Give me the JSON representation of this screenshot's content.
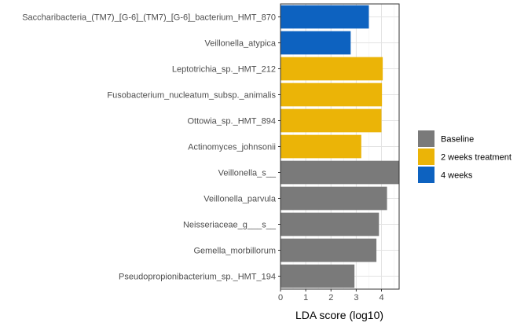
{
  "chart_data": {
    "type": "bar",
    "orientation": "horizontal",
    "xlabel": "LDA score (log10)",
    "ylabel": "",
    "xlim": [
      0,
      4.7
    ],
    "x_ticks": [
      0,
      1,
      2,
      3,
      4
    ],
    "grid": true,
    "legend_position": "right",
    "categories": [
      "Saccharibacteria_(TM7)_[G-6]_(TM7)_[G-6]_bacterium_HMT_870",
      "Veillonella_atypica",
      "Leptotrichia_sp._HMT_212",
      "Fusobacterium_nucleatum_subsp._animalis",
      "Ottowia_sp._HMT_894",
      "Actinomyces_johnsonii",
      "Veillonella_s__",
      "Veillonella_parvula",
      "Neisseriaceae_g___s__",
      "Gemella_morbillorum",
      "Pseudopropionibacterium_sp._HMT_194"
    ],
    "values": [
      3.5,
      2.78,
      4.05,
      4.02,
      4.0,
      3.2,
      4.75,
      4.22,
      3.9,
      3.8,
      2.93
    ],
    "groups": [
      "4 weeks",
      "4 weeks",
      "2 weeks treatment",
      "2 weeks treatment",
      "2 weeks treatment",
      "2 weeks treatment",
      "Baseline",
      "Baseline",
      "Baseline",
      "Baseline",
      "Baseline"
    ],
    "legend": [
      {
        "name": "Baseline",
        "color": "#7a7a7a"
      },
      {
        "name": "2 weeks treatment",
        "color": "#ebb407"
      },
      {
        "name": "4 weeks",
        "color": "#0d62c0"
      }
    ]
  }
}
